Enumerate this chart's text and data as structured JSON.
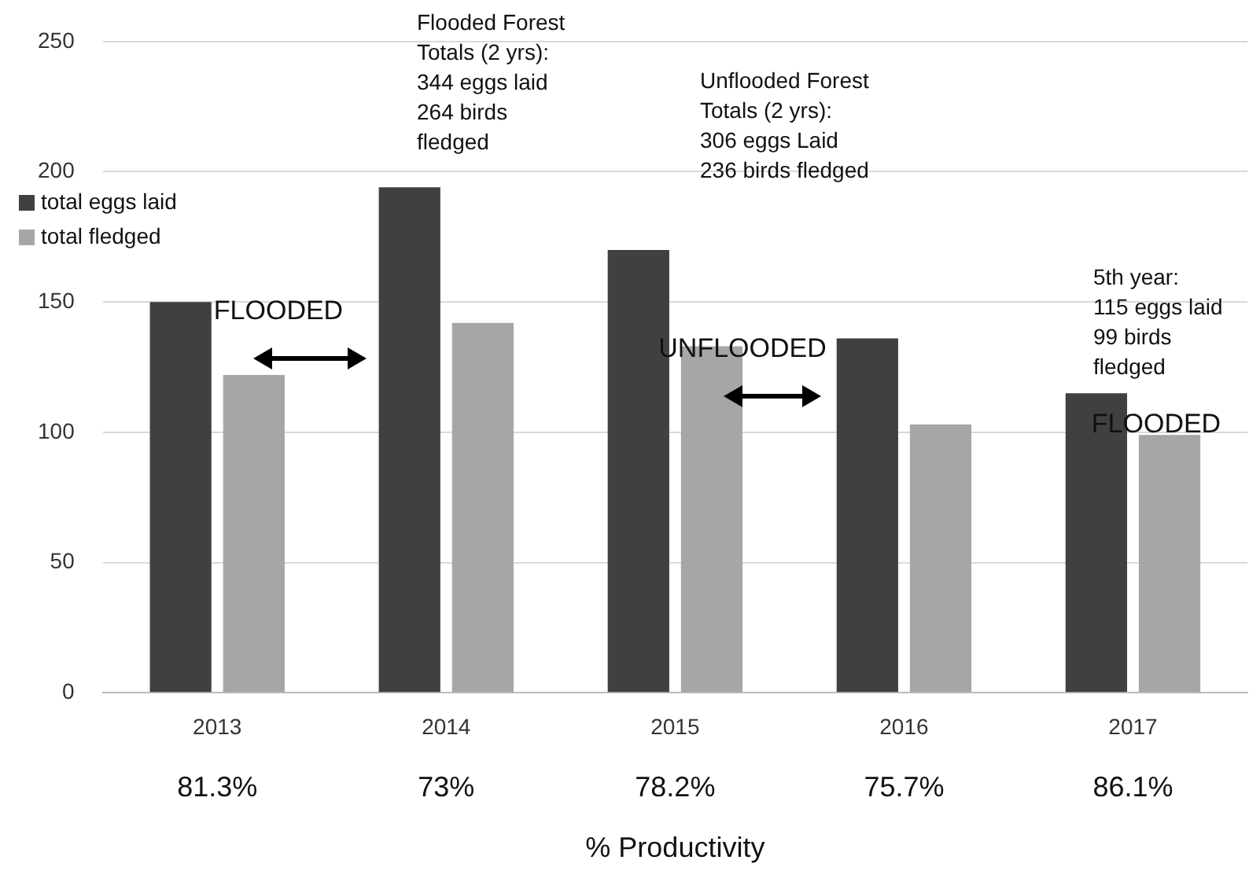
{
  "chart_data": {
    "type": "bar",
    "categories": [
      "2013",
      "2014",
      "2015",
      "2016",
      "2017"
    ],
    "series": [
      {
        "name": "total eggs laid",
        "color": "#404040",
        "values": [
          150,
          194,
          170,
          136,
          115
        ]
      },
      {
        "name": "total fledged",
        "color": "#a6a6a6",
        "values": [
          122,
          142,
          133,
          103,
          99
        ]
      }
    ],
    "xlabel": "% Productivity",
    "ylim": [
      0,
      250
    ],
    "yticks": [
      0,
      50,
      100,
      150,
      200,
      250
    ],
    "grid": "y",
    "legend": "top left",
    "annotations": [
      "Flooded Forest\nTotals (2 yrs):\n344 eggs laid\n264 birds\nfledged",
      "Unflooded Forest\nTotals (2 yrs):\n306 eggs Laid\n236 birds fledged",
      "5th year:\n115 eggs laid\n99 birds\nfledged",
      "FLOODED",
      "UNFLOODED",
      "FLOODED",
      "81.3%",
      "73%",
      "78.2%",
      "75.7%",
      "86.1%"
    ]
  }
}
